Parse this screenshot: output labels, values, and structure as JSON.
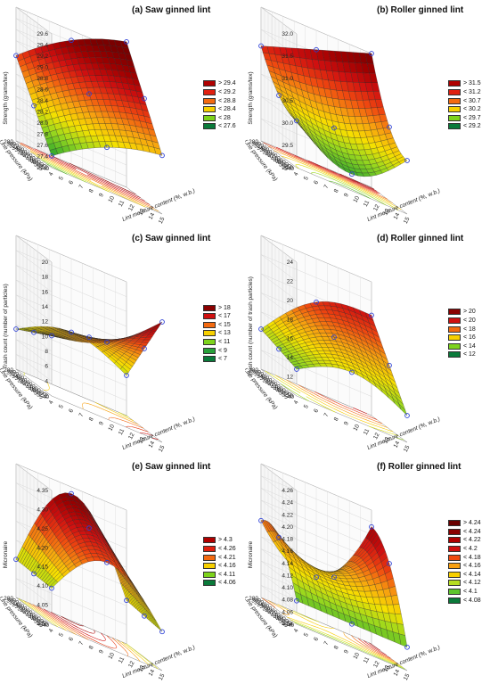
{
  "figure": {
    "panels": [
      {
        "id": "a",
        "title": "(a) Saw ginned lint",
        "zlabel": "Strength (grams/tex)",
        "xlabel": "Lint moisture content (%, w.b.)",
        "ylabel": "Line pressure (kPa)",
        "zticks": [
          "27.2",
          "27.4",
          "27.6",
          "27.8",
          "28.0",
          "28.2",
          "28.4",
          "28.6",
          "28.8",
          "29.0",
          "29.2",
          "29.4",
          "29.6"
        ],
        "xticks": [
          "4",
          "5",
          "6",
          "7",
          "8",
          "9",
          "10",
          "11",
          "12",
          "13",
          "14",
          "15"
        ],
        "yticks": [
          "280",
          "300",
          "320",
          "340",
          "360",
          "380",
          "400",
          "420",
          "440",
          "460",
          "480",
          "500",
          "520",
          "540"
        ],
        "legend": [
          "> 29.4",
          "< 29.2",
          "< 28.8",
          "< 28.4",
          "< 28",
          "< 27.6"
        ],
        "legend_colors": [
          "#b00000",
          "#e02010",
          "#f36a10",
          "#f7d000",
          "#7dd31c",
          "#0a7a3a"
        ],
        "surface": "saddle-rise"
      },
      {
        "id": "b",
        "title": "(b) Roller ginned lint",
        "zlabel": "Strength (grams/tex)",
        "xlabel": "Lint moisture content (%, w.b.)",
        "ylabel": "Line pressure (kPa)",
        "zticks": [
          "29.0",
          "29.5",
          "30.0",
          "30.5",
          "31.0",
          "31.5",
          "32.0"
        ],
        "xticks": [
          "4",
          "5",
          "6",
          "7",
          "8",
          "9",
          "10",
          "11",
          "12",
          "13",
          "14",
          "15"
        ],
        "yticks": [
          "280",
          "300",
          "320",
          "340",
          "360",
          "380",
          "400",
          "420",
          "440",
          "460",
          "480",
          "500",
          "520",
          "540"
        ],
        "legend": [
          "> 31.5",
          "< 31.2",
          "< 30.7",
          "< 30.2",
          "< 29.7",
          "< 29.2"
        ],
        "legend_colors": [
          "#b00000",
          "#e02010",
          "#f36a10",
          "#f7d000",
          "#7dd31c",
          "#0a7a3a"
        ],
        "surface": "valley"
      },
      {
        "id": "c",
        "title": "(c) Saw ginned lint",
        "zlabel": "Trash count (number of particles)",
        "xlabel": "Lint moisture content (%, w.b.)",
        "ylabel": "Line pressure (kPa)",
        "zticks": [
          "2",
          "4",
          "6",
          "8",
          "10",
          "12",
          "14",
          "16",
          "18",
          "20"
        ],
        "xticks": [
          "4",
          "5",
          "6",
          "7",
          "8",
          "9",
          "10",
          "11",
          "12",
          "13",
          "14",
          "15"
        ],
        "yticks": [
          "280",
          "300",
          "320",
          "340",
          "360",
          "380",
          "400",
          "420",
          "440",
          "460",
          "480",
          "500",
          "520",
          "540"
        ],
        "legend": [
          "> 18",
          "< 17",
          "< 15",
          "< 13",
          "< 11",
          "< 9",
          "< 7"
        ],
        "legend_colors": [
          "#8a0000",
          "#d01010",
          "#f36a10",
          "#f7d000",
          "#7dd31c",
          "#27a13a",
          "#0a7a3a"
        ],
        "surface": "twist"
      },
      {
        "id": "d",
        "title": "(d) Roller ginned lint",
        "zlabel": "Trash count (number of trash particles)",
        "xlabel": "Lint moisture content (%, w.b.)",
        "ylabel": "Line pressure (kPa)",
        "zticks": [
          "10",
          "12",
          "14",
          "16",
          "18",
          "20",
          "22",
          "24"
        ],
        "xticks": [
          "4",
          "5",
          "6",
          "7",
          "8",
          "9",
          "10",
          "11",
          "12",
          "13",
          "14",
          "15"
        ],
        "yticks": [
          "280",
          "300",
          "320",
          "340",
          "360",
          "380",
          "400",
          "420",
          "440",
          "460",
          "480",
          "500",
          "520",
          "540"
        ],
        "legend": [
          "> 20",
          "< 20",
          "< 18",
          "< 16",
          "< 14",
          "< 12"
        ],
        "legend_colors": [
          "#8a0000",
          "#d01010",
          "#f36a10",
          "#f7d000",
          "#7dd31c",
          "#0a7a3a"
        ],
        "surface": "green-ridge"
      },
      {
        "id": "e",
        "title": "(e) Saw ginned lint",
        "zlabel": "Micronaire",
        "xlabel": "Lint moisture content (%, w.b.)",
        "ylabel": "Line pressure (kPa)",
        "zticks": [
          "4.00",
          "4.05",
          "4.10",
          "4.15",
          "4.20",
          "4.25",
          "4.30",
          "4.35"
        ],
        "xticks": [
          "4",
          "5",
          "6",
          "7",
          "8",
          "9",
          "10",
          "11",
          "12",
          "13",
          "14",
          "15"
        ],
        "yticks": [
          "280",
          "300",
          "320",
          "340",
          "360",
          "380",
          "400",
          "420",
          "440",
          "460",
          "480",
          "500",
          "520",
          "540"
        ],
        "legend": [
          "> 4.3",
          "< 4.26",
          "< 4.21",
          "< 4.16",
          "< 4.11",
          "< 4.06"
        ],
        "legend_colors": [
          "#b00000",
          "#e02010",
          "#f36a10",
          "#f7d000",
          "#7dd31c",
          "#0a7a3a"
        ],
        "surface": "dome"
      },
      {
        "id": "f",
        "title": "(f) Roller ginned lint",
        "zlabel": "Micronaire",
        "xlabel": "Lint moisture content (%, w.b.)",
        "ylabel": "Line pressure (kPa)",
        "zticks": [
          "4.04",
          "4.06",
          "4.08",
          "4.10",
          "4.12",
          "4.14",
          "4.16",
          "4.18",
          "4.20",
          "4.22",
          "4.24",
          "4.26"
        ],
        "xticks": [
          "4",
          "5",
          "6",
          "7",
          "8",
          "9",
          "10",
          "11",
          "12",
          "13",
          "14",
          "15"
        ],
        "yticks": [
          "280",
          "300",
          "320",
          "340",
          "360",
          "380",
          "400",
          "420",
          "440",
          "460",
          "480",
          "500",
          "520",
          "540"
        ],
        "legend": [
          "> 4.24",
          "< 4.24",
          "< 4.22",
          "< 4.2",
          "< 4.18",
          "< 4.16",
          "< 4.14",
          "< 4.12",
          "< 4.1",
          "< 4.08"
        ],
        "legend_colors": [
          "#6a0000",
          "#8a0000",
          "#b00000",
          "#d01010",
          "#f04a10",
          "#f7a010",
          "#f7d000",
          "#b5dd20",
          "#5cc42c",
          "#0a7a3a"
        ],
        "surface": "saddle"
      }
    ]
  },
  "chart_data": [
    {
      "type": "surface",
      "title": "(a) Saw ginned lint",
      "zlabel": "Strength (grams/tex)",
      "xlabel": "Lint moisture content (%, w.b.)",
      "ylabel": "Line pressure (kPa)",
      "xlim": [
        4,
        15
      ],
      "ylim": [
        280,
        540
      ],
      "zlim": [
        27.2,
        29.6
      ],
      "corners": [
        {
          "x": 4,
          "y": 280,
          "z": 27.5
        },
        {
          "x": 15,
          "y": 280,
          "z": 28.3
        },
        {
          "x": 4,
          "y": 540,
          "z": 28.2
        },
        {
          "x": 15,
          "y": 540,
          "z": 29.6
        }
      ]
    },
    {
      "type": "surface",
      "title": "(b) Roller ginned lint",
      "zlabel": "Strength (grams/tex)",
      "xlabel": "Lint moisture content (%, w.b.)",
      "ylabel": "Line pressure (kPa)",
      "xlim": [
        4,
        15
      ],
      "ylim": [
        280,
        540
      ],
      "zlim": [
        29.0,
        32.0
      ],
      "corners": [
        {
          "x": 4,
          "y": 280,
          "z": 29.6
        },
        {
          "x": 15,
          "y": 280,
          "z": 29.8
        },
        {
          "x": 4,
          "y": 540,
          "z": 30.0
        },
        {
          "x": 15,
          "y": 540,
          "z": 32.0
        }
      ]
    },
    {
      "type": "surface",
      "title": "(c) Saw ginned lint",
      "zlabel": "Trash count (number of particles)",
      "xlabel": "Lint moisture content (%, w.b.)",
      "ylabel": "Line pressure (kPa)",
      "xlim": [
        4,
        15
      ],
      "ylim": [
        280,
        540
      ],
      "zlim": [
        2,
        20
      ],
      "corners": [
        {
          "x": 4,
          "y": 280,
          "z": 10
        },
        {
          "x": 15,
          "y": 280,
          "z": 18
        },
        {
          "x": 4,
          "y": 540,
          "z": 11
        },
        {
          "x": 15,
          "y": 540,
          "z": 15
        }
      ]
    },
    {
      "type": "surface",
      "title": "(d) Roller ginned lint",
      "zlabel": "Trash count (number of trash particles)",
      "xlabel": "Lint moisture content (%, w.b.)",
      "ylabel": "Line pressure (kPa)",
      "xlim": [
        4,
        15
      ],
      "ylim": [
        280,
        540
      ],
      "zlim": [
        10,
        24
      ],
      "corners": [
        {
          "x": 4,
          "y": 280,
          "z": 12
        },
        {
          "x": 15,
          "y": 280,
          "z": 14
        },
        {
          "x": 4,
          "y": 540,
          "z": 11
        },
        {
          "x": 15,
          "y": 540,
          "z": 20
        }
      ]
    },
    {
      "type": "surface",
      "title": "(e) Saw ginned lint",
      "zlabel": "Micronaire",
      "xlabel": "Lint moisture content (%, w.b.)",
      "ylabel": "Line pressure (kPa)",
      "xlim": [
        4,
        15
      ],
      "ylim": [
        280,
        540
      ],
      "zlim": [
        4.0,
        4.35
      ],
      "corners": [
        {
          "x": 4,
          "y": 280,
          "z": 4.12
        },
        {
          "x": 15,
          "y": 280,
          "z": 4.14
        },
        {
          "x": 4,
          "y": 540,
          "z": 4.18
        },
        {
          "x": 15,
          "y": 540,
          "z": 4.28
        }
      ]
    },
    {
      "type": "surface",
      "title": "(f) Roller ginned lint",
      "zlabel": "Micronaire",
      "xlabel": "Lint moisture content (%, w.b.)",
      "ylabel": "Line pressure (kPa)",
      "xlim": [
        4,
        15
      ],
      "ylim": [
        280,
        540
      ],
      "zlim": [
        4.04,
        4.26
      ],
      "corners": [
        {
          "x": 4,
          "y": 280,
          "z": 4.16
        },
        {
          "x": 15,
          "y": 280,
          "z": 4.1
        },
        {
          "x": 4,
          "y": 540,
          "z": 4.15
        },
        {
          "x": 15,
          "y": 540,
          "z": 4.26
        }
      ]
    }
  ]
}
